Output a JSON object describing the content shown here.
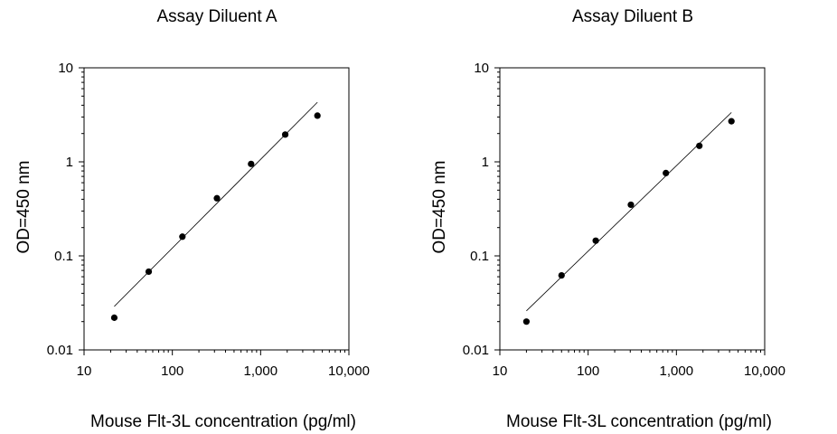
{
  "chart_data": [
    {
      "type": "scatter",
      "title": "Assay Diluent A",
      "xlabel": "Mouse Flt-3L concentration (pg/ml)",
      "ylabel": "OD=450 nm",
      "x_scale": "log",
      "y_scale": "log",
      "xlim": [
        10,
        10000
      ],
      "ylim": [
        0.01,
        10
      ],
      "x_ticks": [
        10,
        100,
        1000,
        10000
      ],
      "x_tick_labels": [
        "10",
        "100",
        "1,000",
        "10,000"
      ],
      "y_ticks": [
        0.01,
        0.1,
        1,
        10
      ],
      "y_tick_labels": [
        "0.01",
        "0.1",
        "1",
        "10"
      ],
      "grid": false,
      "series": [
        {
          "x": [
            22,
            54,
            130,
            320,
            780,
            1900,
            4400
          ],
          "y": [
            0.022,
            0.068,
            0.16,
            0.41,
            0.95,
            1.95,
            3.1
          ]
        }
      ],
      "fit_line": {
        "x": [
          22,
          4400
        ],
        "y": [
          0.029,
          4.3
        ]
      }
    },
    {
      "type": "scatter",
      "title": "Assay Diluent B",
      "xlabel": "Mouse Flt-3L concentration (pg/ml)",
      "ylabel": "OD=450 nm",
      "x_scale": "log",
      "y_scale": "log",
      "xlim": [
        10,
        10000
      ],
      "ylim": [
        0.01,
        10
      ],
      "x_ticks": [
        10,
        100,
        1000,
        10000
      ],
      "x_tick_labels": [
        "10",
        "100",
        "1,000",
        "10,000"
      ],
      "y_ticks": [
        0.01,
        0.1,
        1,
        10
      ],
      "y_tick_labels": [
        "0.01",
        "0.1",
        "1",
        "10"
      ],
      "grid": false,
      "series": [
        {
          "x": [
            20,
            50,
            122,
            305,
            760,
            1820,
            4200
          ],
          "y": [
            0.02,
            0.062,
            0.145,
            0.35,
            0.76,
            1.48,
            2.7
          ]
        }
      ],
      "fit_line": {
        "x": [
          20,
          4200
        ],
        "y": [
          0.026,
          3.35
        ]
      }
    }
  ]
}
